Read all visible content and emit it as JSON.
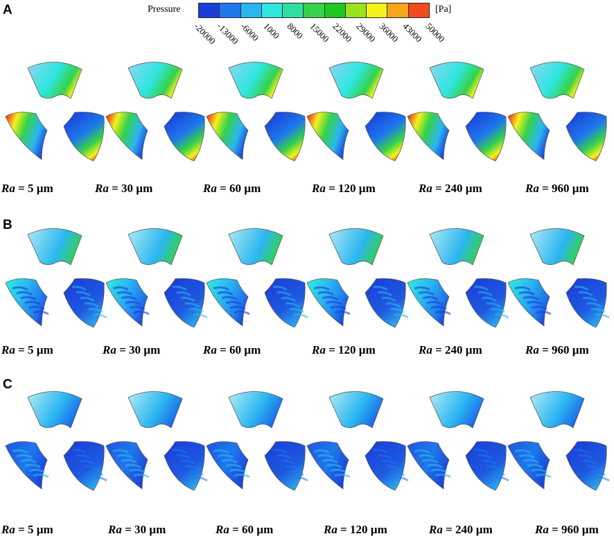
{
  "legend": {
    "title": "Pressure",
    "unit": "[Pa]",
    "ticks": [
      "-20000",
      "-13000",
      "-6000",
      "1000",
      "8000",
      "15000",
      "22000",
      "29000",
      "36000",
      "43000",
      "50000"
    ],
    "colors": [
      "#1a3fd8",
      "#1e78ec",
      "#2bb6f0",
      "#2ee6e0",
      "#2ee0a0",
      "#35d24a",
      "#1ec820",
      "#9ae21e",
      "#f4f21a",
      "#f6a61a",
      "#f04a1e"
    ]
  },
  "rows": [
    {
      "letter": "A",
      "labels": [
        {
          "var": "Ra",
          "rest": " = 5 µm"
        },
        {
          "var": "Ra",
          "rest": " = 30 µm"
        },
        {
          "var": "Ra",
          "rest": " = 60 µm"
        },
        {
          "var": "Ra",
          "rest": " = 120 µm"
        },
        {
          "var": "Ra",
          "rest": " = 240 µm"
        },
        {
          "var": "Ra",
          "rest": " = 960 µm"
        }
      ]
    },
    {
      "letter": "B",
      "labels": [
        {
          "var": "Ra",
          "rest": " = 5 µm"
        },
        {
          "var": "Ra",
          "rest": " = 30 µm"
        },
        {
          "var": "Ra",
          "rest": " = 60 µm"
        },
        {
          "var": "Ra",
          "rest": " = 120 µm"
        },
        {
          "var": "Ra",
          "rest": " = 240 µm"
        },
        {
          "var": "Ra",
          "rest": " = 960 µm"
        }
      ]
    },
    {
      "letter": "C",
      "labels": [
        {
          "var": "Ra",
          "rest": " = 5 µm"
        },
        {
          "var": "Ra",
          "rest": " = 30 µm"
        },
        {
          "var": "Ra",
          "rest": " = 60 µm"
        },
        {
          "var": "Ra",
          "rest": " = 120 µm"
        },
        {
          "var": "Ra",
          "rest": " = 240 µm"
        },
        {
          "var": "Ra",
          "rest": " = 960 µm"
        }
      ]
    }
  ]
}
